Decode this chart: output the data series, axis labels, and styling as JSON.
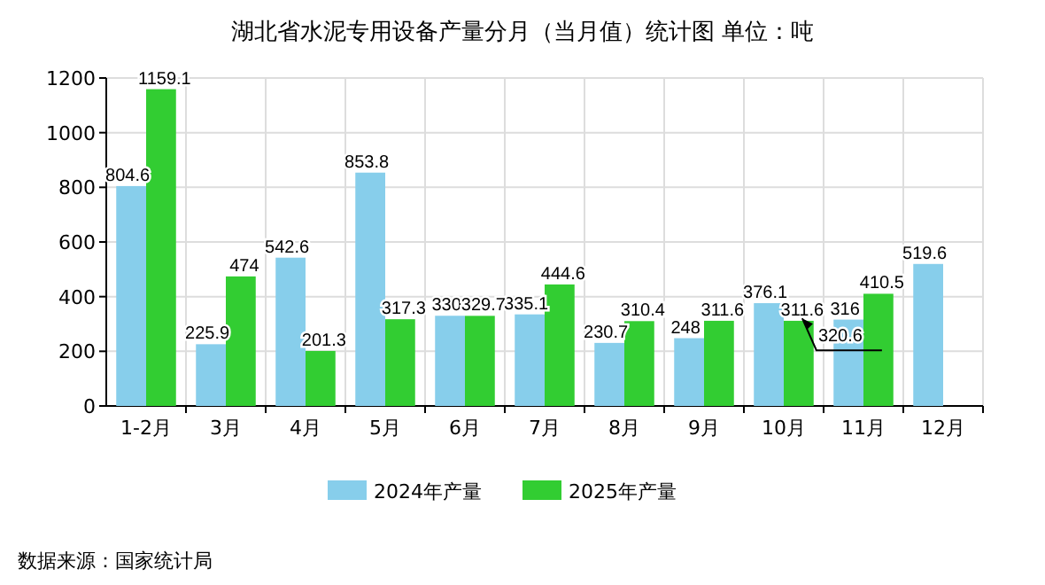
{
  "chart_data": {
    "type": "bar",
    "title": "湖北省水泥专用设备产量分月（当月值）统计图 单位：吨",
    "categories": [
      "1-2月",
      "3月",
      "4月",
      "5月",
      "6月",
      "7月",
      "8月",
      "9月",
      "10月",
      "11月",
      "12月"
    ],
    "series": [
      {
        "name": "2024年产量",
        "color": "#87ceeb",
        "values": [
          804.6,
          225.9,
          542.6,
          853.8,
          330,
          335.1,
          230.7,
          248,
          376.1,
          316,
          519.6
        ],
        "value_labels": [
          "804.6",
          "225.9",
          "542.6",
          "853.8",
          "330",
          "335.1",
          "230.7",
          "248",
          "376.1",
          "316",
          "519.6"
        ]
      },
      {
        "name": "2025年产量",
        "color": "#32cd32",
        "values": [
          1159.1,
          474,
          201.3,
          317.3,
          329.7,
          444.6,
          310.4,
          311.6,
          311.6,
          410.5,
          null
        ],
        "value_labels": [
          "1159.1",
          "474",
          "201.3",
          "317.3",
          "329.7",
          "444.6",
          "310.4",
          "311.6",
          "311.6",
          "410.5",
          null
        ]
      }
    ],
    "ylim": [
      0,
      1200
    ],
    "yticks": [
      0,
      200,
      400,
      600,
      800,
      1000,
      1200
    ],
    "grid": true,
    "legend": "bottom",
    "annotations": [
      {
        "text": "320.6",
        "x": "10月",
        "y": 320.6
      },
      "数据来源：国家统计局"
    ]
  }
}
